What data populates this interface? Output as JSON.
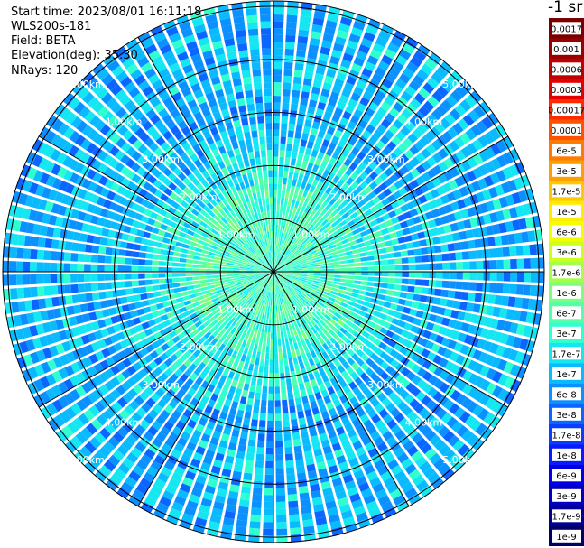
{
  "header": {
    "start_time": "Start time: 2023/08/01 16:11:18",
    "instrument": "WLS200s-181",
    "field": "Field: BETA",
    "elevation": "Elevation(deg): 35.30",
    "nrays": "NRays: 120",
    "unit_label": "-1 sr"
  },
  "chart_data": {
    "type": "heatmap",
    "projection": "polar (PPI scan)",
    "rays": 120,
    "range_rings_km": [
      1,
      2,
      3,
      4,
      5
    ],
    "range_ring_labels": [
      "1.00km",
      "2.00km",
      "3.00km",
      "4.00km",
      "5.00km"
    ],
    "max_range_km": 5.1,
    "radial_spokes": 12,
    "scale": "log",
    "colorbar_ticks": [
      "0.0017",
      "0.001",
      "0.0006",
      "0.0003",
      "0.00017",
      "0.0001",
      "6e-5",
      "3e-5",
      "1.7e-5",
      "1e-5",
      "6e-6",
      "3e-6",
      "1.7e-6",
      "1e-6",
      "6e-7",
      "3e-7",
      "1.7e-7",
      "1e-7",
      "6e-8",
      "3e-8",
      "1.7e-8",
      "1e-8",
      "6e-9",
      "3e-9",
      "1.7e-9",
      "1e-9"
    ],
    "colorbar_colors": [
      "#7a0000",
      "#9a0000",
      "#c00000",
      "#e40000",
      "#ff2a00",
      "#ff5200",
      "#ff7a00",
      "#ff9e00",
      "#ffc800",
      "#ffec00",
      "#f2ff00",
      "#ccff1a",
      "#a4ff4a",
      "#7cff7c",
      "#56ffa6",
      "#30ffd0",
      "#14e6f2",
      "#0abaff",
      "#0a90ff",
      "#0a66ff",
      "#0a3eff",
      "#0a1aff",
      "#0000e6",
      "#0000c0",
      "#000096",
      "#000066"
    ]
  }
}
